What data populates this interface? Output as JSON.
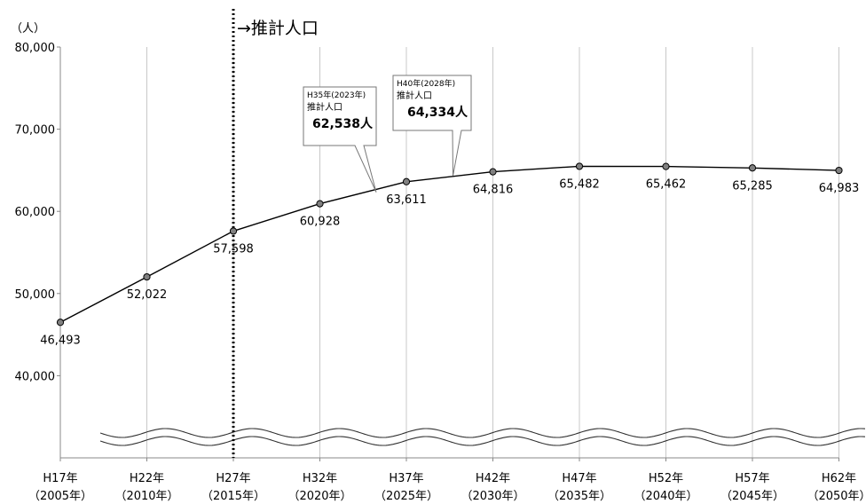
{
  "chart_data": {
    "type": "line",
    "y_unit": "（人）",
    "projection_label": "→推計人口",
    "projection_start_index": 2,
    "ylim": [
      30000,
      80000
    ],
    "yticks": [
      40000,
      50000,
      60000,
      70000,
      80000
    ],
    "ytick_labels": [
      "40,000",
      "50,000",
      "60,000",
      "70,000",
      "80,000"
    ],
    "axis_break": true,
    "grid": "vertical",
    "categories": [
      {
        "era": "H17年",
        "year": "（2005年）"
      },
      {
        "era": "H22年",
        "year": "（2010年）"
      },
      {
        "era": "H27年",
        "year": "（2015年）"
      },
      {
        "era": "H32年",
        "year": "（2020年）"
      },
      {
        "era": "H37年",
        "year": "（2025年）"
      },
      {
        "era": "H42年",
        "year": "（2030年）"
      },
      {
        "era": "H47年",
        "year": "（2035年）"
      },
      {
        "era": "H52年",
        "year": "（2040年）"
      },
      {
        "era": "H57年",
        "year": "（2045年）"
      },
      {
        "era": "H62年",
        "year": "（2050年）"
      }
    ],
    "values": [
      46493,
      52022,
      57598,
      60928,
      63611,
      64816,
      65482,
      65462,
      65285,
      64983
    ],
    "value_labels": [
      "46,493",
      "52,022",
      "57,598",
      "60,928",
      "63,611",
      "64,816",
      "65,482",
      "65,462",
      "65,285",
      "64,983"
    ],
    "callouts": [
      {
        "line1": "H35年(2023年)",
        "line2": "推計人口",
        "line3": "62,538人",
        "x_position": 3.6,
        "value": 62538
      },
      {
        "line1": "H40年(2028年)",
        "line2": "推計人口",
        "line3": "64,334人",
        "x_position": 4.6,
        "value": 64334
      }
    ]
  }
}
